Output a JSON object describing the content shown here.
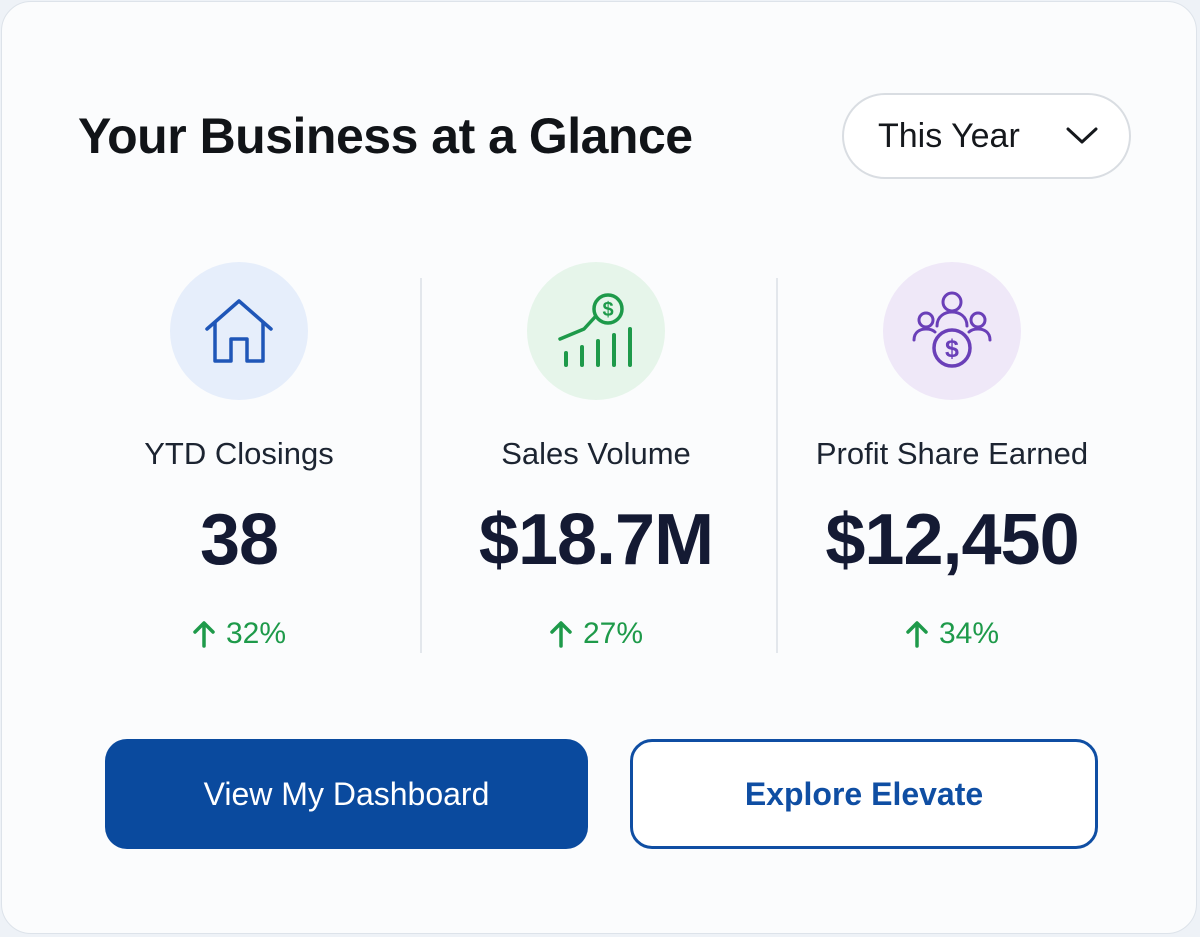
{
  "header": {
    "title": "Your Business at a Glance",
    "period_select": {
      "value": "This Year",
      "icon": "chevron-down-icon"
    }
  },
  "metrics": [
    {
      "label": "YTD Closings",
      "value": "38",
      "change": "32%",
      "change_direction": "up",
      "icon": "house-icon",
      "icon_bg": "#e6eefb",
      "icon_color": "#1f56b8"
    },
    {
      "label": "Sales Volume",
      "value": "$18.7M",
      "change": "27%",
      "change_direction": "up",
      "icon": "growth-chart-icon",
      "icon_bg": "#e6f5ea",
      "icon_color": "#1e9a4a"
    },
    {
      "label": "Profit Share Earned",
      "value": "$12,450",
      "change": "34%",
      "change_direction": "up",
      "icon": "people-dollar-icon",
      "icon_bg": "#efe8f8",
      "icon_color": "#6a3fb8"
    }
  ],
  "actions": {
    "primary_label": "View My Dashboard",
    "secondary_label": "Explore Elevate"
  },
  "colors": {
    "primary": "#0a4a9e",
    "positive": "#1e9a4a",
    "value_text": "#141a33"
  }
}
